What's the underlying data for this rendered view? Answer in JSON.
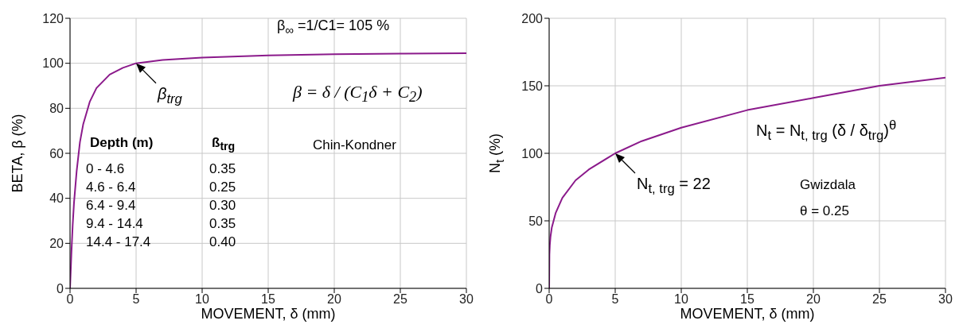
{
  "chart_data": [
    {
      "type": "line",
      "xlabel": "MOVEMENT, δ (mm)",
      "ylabel": "BETA, β (%)",
      "x": [
        0,
        0.1,
        0.2,
        0.3,
        0.5,
        0.75,
        1,
        1.5,
        2,
        3,
        4,
        5,
        7,
        10,
        15,
        20,
        25,
        30
      ],
      "series": [
        {
          "color": "#8b1a8b",
          "values": [
            0,
            15,
            28,
            38,
            52,
            65,
            73,
            83,
            89,
            95,
            98,
            100,
            101.5,
            102.5,
            103.5,
            104,
            104.3,
            104.5
          ]
        }
      ],
      "xlim": [
        0,
        30
      ],
      "xticks": [
        0,
        5,
        10,
        15,
        20,
        25,
        30
      ],
      "ylim": [
        0,
        120
      ],
      "yticks": [
        0,
        20,
        40,
        60,
        80,
        100,
        120
      ],
      "grid": true,
      "marker": "none",
      "line_style": "solid",
      "annotations": [
        "β$_{∞}$ =1/C1= 105 %",
        {
          "text": "β$_{trg}$",
          "x": 5,
          "y": 100
        },
        "β = δ / (C$_{1}$δ + C$_{2}$)",
        "Chin-Kondner",
        "Depth (m)",
        "ß$_{trg}$",
        "0 - 4.6",
        "0.35",
        "4.6 - 6.4",
        "0.25",
        "6.4 - 9.4",
        "0.30",
        "9.4 - 14.4",
        "0.35",
        "14.4 - 17.4",
        "0.40"
      ]
    },
    {
      "type": "line",
      "xlabel": "MOVEMENT, δ (mm)",
      "ylabel": "N$_{t}$ (%)",
      "x": [
        0,
        0.02,
        0.05,
        0.1,
        0.2,
        0.5,
        1,
        2,
        3,
        5,
        7,
        10,
        15,
        20,
        25,
        30
      ],
      "series": [
        {
          "color": "#8b1a8b",
          "values": [
            0,
            25,
            32,
            38,
            45,
            56,
            67,
            80,
            88,
            100,
            109,
            119,
            132,
            141,
            150,
            156
          ]
        }
      ],
      "xlim": [
        0,
        30
      ],
      "xticks": [
        0,
        5,
        10,
        15,
        20,
        25,
        30
      ],
      "ylim": [
        0,
        200
      ],
      "yticks": [
        0,
        50,
        100,
        150,
        200
      ],
      "grid": true,
      "marker": "none",
      "line_style": "solid",
      "annotations": [
        {
          "text": "N$_{t, trg}$  = 22",
          "x": 5,
          "y": 100
        },
        "N$_{t}$ = N$_{t, trg}$ (δ / δ$_{trg}$)$^{θ}$",
        "Gwizdala",
        "θ = 0.25"
      ]
    }
  ]
}
